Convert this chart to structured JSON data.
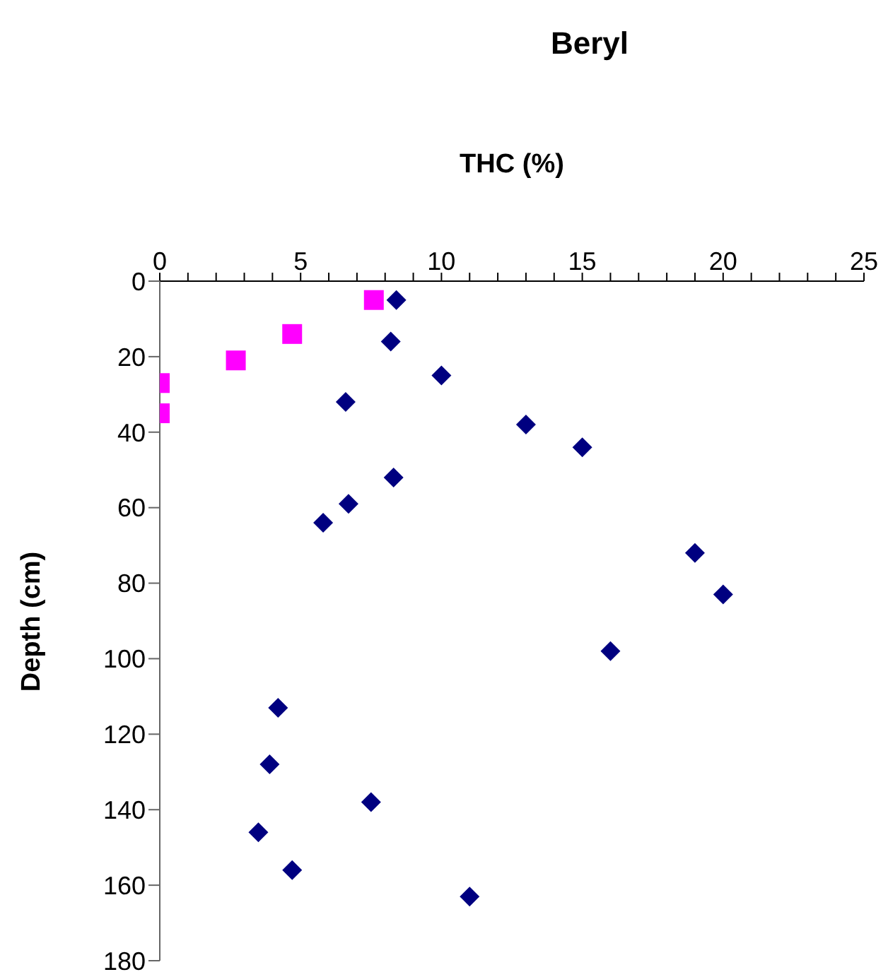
{
  "chart_data": {
    "type": "scatter",
    "title": "Beryl",
    "xlabel": "THC (%)",
    "ylabel": "Depth (cm)",
    "xlim": [
      0,
      25
    ],
    "xticks": [
      0,
      {
        "value": 1,
        "label": null
      },
      {
        "value": 2,
        "label": null
      },
      {
        "value": 3,
        "label": null
      },
      {
        "value": 4,
        "label": null
      },
      5,
      {
        "value": 6,
        "label": null
      },
      {
        "value": 7,
        "label": null
      },
      {
        "value": 8,
        "label": null
      },
      {
        "value": 9,
        "label": null
      },
      10,
      {
        "value": 11,
        "label": null
      },
      {
        "value": 12,
        "label": null
      },
      {
        "value": 13,
        "label": null
      },
      {
        "value": 14,
        "label": null
      },
      15,
      {
        "value": 16,
        "label": null
      },
      {
        "value": 17,
        "label": null
      },
      {
        "value": 18,
        "label": null
      },
      {
        "value": 19,
        "label": null
      },
      20,
      {
        "value": 21,
        "label": null
      },
      {
        "value": 22,
        "label": null
      },
      {
        "value": 23,
        "label": null
      },
      {
        "value": 24,
        "label": null
      },
      25
    ],
    "ylim": [
      180,
      0
    ],
    "yticks": [
      0,
      20,
      40,
      60,
      80,
      100,
      120,
      140,
      160,
      180
    ],
    "grid": false,
    "legend": false,
    "series": [
      {
        "color": "#000080",
        "marker": "diamond",
        "x": [
          8.4,
          8.2,
          10,
          6.6,
          13,
          15,
          8.3,
          6.7,
          5.8,
          19,
          20,
          16,
          4.2,
          3.9,
          7.5,
          3.5,
          4.7,
          11
        ],
        "values": [
          5,
          16,
          25,
          32,
          38,
          44,
          52,
          59,
          64,
          72,
          83,
          98,
          113,
          128,
          138,
          146,
          156,
          163
        ]
      },
      {
        "color": "#ff00ff",
        "marker": "square",
        "x": [
          7.6,
          4.7,
          2.7,
          0,
          0
        ],
        "values": [
          5,
          14,
          21,
          27,
          35
        ]
      }
    ]
  }
}
